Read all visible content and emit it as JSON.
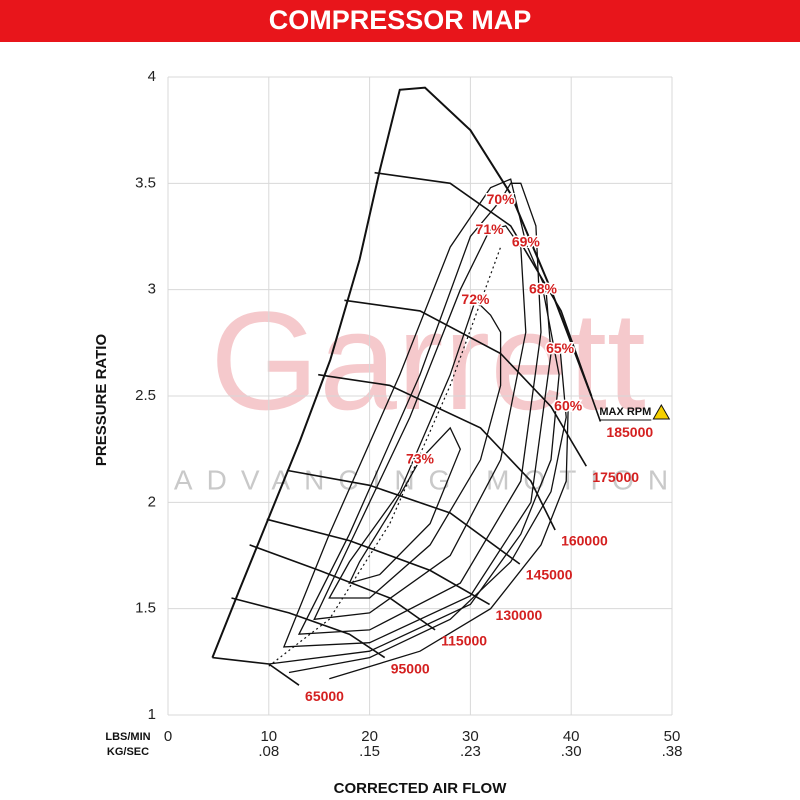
{
  "chart_data": {
    "type": "compressor-map",
    "title": "COMPRESSOR MAP",
    "xlabel": "CORRECTED AIR FLOW",
    "ylabel": "PRESSURE RATIO",
    "x_unit_label": "LBS/MIN",
    "x2_unit_label": "KG/SEC",
    "xlim": [
      0,
      50
    ],
    "xticks": [
      0,
      10,
      20,
      30,
      40,
      50
    ],
    "x2ticks": [
      {
        "value": 10,
        "label": ".08"
      },
      {
        "value": 20,
        "label": ".15"
      },
      {
        "value": 30,
        "label": ".23"
      },
      {
        "value": 40,
        "label": ".30"
      },
      {
        "value": 50,
        "label": ".38"
      }
    ],
    "ylim": [
      1,
      4
    ],
    "yticks": [
      1,
      1.5,
      2,
      2.5,
      3,
      3.5,
      4
    ],
    "grid": true,
    "line_color": "#111111",
    "label_color": "#d42020",
    "boundary": {
      "x": [
        4.4,
        7.1,
        10.1,
        13.1,
        16.1,
        19.0,
        21.0,
        23.0,
        25.5,
        30,
        34,
        38,
        42
      ],
      "y": [
        1.27,
        1.59,
        1.94,
        2.29,
        2.67,
        3.14,
        3.56,
        3.94,
        3.95,
        3.75,
        3.45,
        3.0,
        2.5
      ]
    },
    "max_rpm_label": "MAX RPM",
    "peak_efficiency_line": {
      "x": [
        10,
        16,
        22,
        28,
        33
      ],
      "y": [
        1.23,
        1.45,
        1.9,
        2.55,
        3.2
      ]
    },
    "speed_lines": [
      {
        "label": "65000",
        "x": [
          4.4,
          10,
          13
        ],
        "y": [
          1.27,
          1.24,
          1.14
        ]
      },
      {
        "label": "95000",
        "x": [
          6.3,
          12,
          18,
          21.5
        ],
        "y": [
          1.55,
          1.48,
          1.38,
          1.27
        ]
      },
      {
        "label": "115000",
        "x": [
          8.1,
          15,
          22,
          26.5
        ],
        "y": [
          1.8,
          1.68,
          1.55,
          1.4
        ]
      },
      {
        "label": "130000",
        "x": [
          9.8,
          18,
          26,
          31.9
        ],
        "y": [
          1.92,
          1.82,
          1.68,
          1.52
        ]
      },
      {
        "label": "145000",
        "x": [
          11.8,
          20,
          28,
          34.9
        ],
        "y": [
          2.15,
          2.08,
          1.95,
          1.71
        ]
      },
      {
        "label": "160000",
        "x": [
          14.9,
          22,
          31,
          36,
          38.4
        ],
        "y": [
          2.6,
          2.55,
          2.35,
          2.1,
          1.87
        ]
      },
      {
        "label": "175000",
        "x": [
          17.5,
          25,
          33,
          38,
          41.5
        ],
        "y": [
          2.95,
          2.9,
          2.7,
          2.45,
          2.17
        ]
      },
      {
        "label": "185000",
        "x": [
          20.5,
          28,
          34,
          39,
          42.9
        ],
        "y": [
          3.55,
          3.5,
          3.3,
          2.9,
          2.38
        ]
      }
    ],
    "efficiency_islands": [
      {
        "label": "73%",
        "x": [
          25,
          22,
          19,
          18,
          21,
          26,
          29,
          28,
          25
        ],
        "y": [
          2.2,
          1.95,
          1.72,
          1.62,
          1.66,
          1.9,
          2.25,
          2.35,
          2.2
        ]
      },
      {
        "label": "72%",
        "x": [
          30.5,
          28,
          23,
          18,
          16,
          20,
          26,
          31,
          33,
          33,
          32,
          30.5
        ],
        "y": [
          2.95,
          2.6,
          2.05,
          1.72,
          1.55,
          1.55,
          1.8,
          2.2,
          2.55,
          2.8,
          2.88,
          2.95
        ]
      },
      {
        "label": "71%",
        "x": [
          31.9,
          29,
          24,
          18,
          14.5,
          20,
          28,
          33,
          35.5,
          35,
          33.5,
          31.9
        ],
        "y": [
          3.28,
          3.0,
          2.4,
          1.8,
          1.45,
          1.48,
          1.75,
          2.2,
          2.8,
          3.2,
          3.3,
          3.28
        ]
      },
      {
        "label": "70%",
        "x": [
          33,
          30,
          25,
          18,
          13,
          20,
          29,
          35,
          37,
          36.5,
          35,
          34,
          33
        ],
        "y": [
          3.42,
          3.25,
          2.6,
          1.85,
          1.38,
          1.4,
          1.62,
          2.1,
          2.8,
          3.3,
          3.5,
          3.5,
          3.42
        ]
      },
      {
        "label": "69%",
        "x": [
          35.5,
          34,
          32,
          28,
          23,
          16,
          11.5,
          20,
          30,
          36,
          38,
          37.5,
          35.5
        ],
        "y": [
          3.22,
          3.52,
          3.48,
          3.2,
          2.6,
          1.85,
          1.32,
          1.34,
          1.56,
          2.0,
          2.7,
          3.0,
          3.22
        ]
      },
      {
        "label": "68%",
        "x": [
          37.2,
          38.8,
          38,
          35,
          30,
          20,
          10
        ],
        "y": [
          3.0,
          2.6,
          2.2,
          1.85,
          1.52,
          1.3,
          1.24
        ]
      },
      {
        "label": "65%",
        "x": [
          38.9,
          39.5,
          38,
          34,
          28,
          20,
          12
        ],
        "y": [
          2.72,
          2.4,
          2.05,
          1.72,
          1.45,
          1.27,
          1.2
        ]
      },
      {
        "label": "60%",
        "x": [
          39.7,
          39.5,
          37,
          32,
          25,
          16
        ],
        "y": [
          2.45,
          2.1,
          1.8,
          1.5,
          1.3,
          1.17
        ]
      }
    ],
    "watermark": {
      "brand": "Garrett",
      "tagline": "ADVANCING MOTION"
    }
  }
}
